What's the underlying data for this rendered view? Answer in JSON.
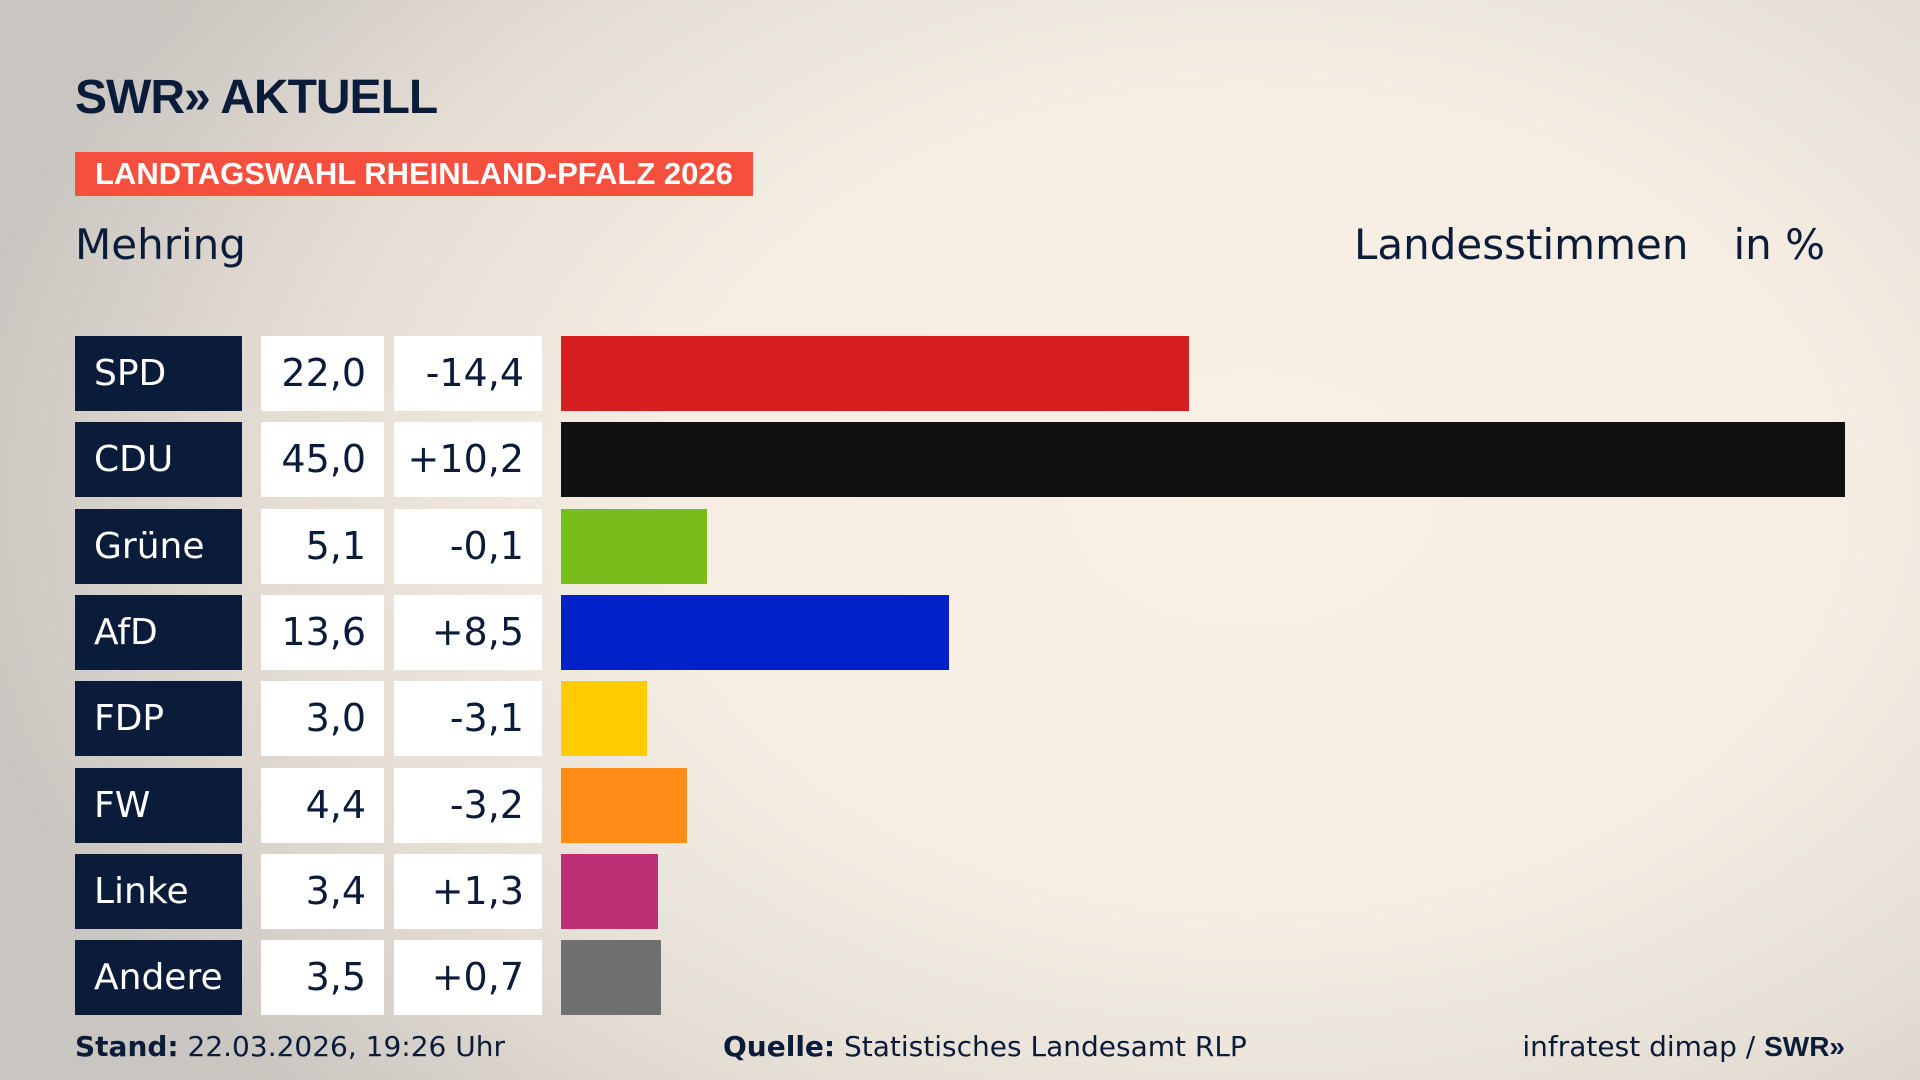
{
  "header": {
    "logo": "SWR» AKTUELL",
    "badge": "LANDTAGSWAHL RHEINLAND-PFALZ 2026",
    "place": "Mehring",
    "metric": "Landesstimmen",
    "unit": "in %"
  },
  "chart_data": {
    "type": "bar",
    "orientation": "horizontal",
    "categories": [
      "SPD",
      "CDU",
      "Grüne",
      "AfD",
      "FDP",
      "FW",
      "Linke",
      "Andere"
    ],
    "values": [
      22.0,
      45.0,
      5.1,
      13.6,
      3.0,
      4.4,
      3.4,
      3.5
    ],
    "value_labels": [
      "22,0",
      "45,0",
      "5,1",
      "13,6",
      "3,0",
      "4,4",
      "3,4",
      "3,5"
    ],
    "diff_labels": [
      "-14,4",
      "+10,2",
      "-0,1",
      "+8,5",
      "-3,1",
      "-3,2",
      "+1,3",
      "+0,7"
    ],
    "diffs": [
      -14.4,
      10.2,
      -0.1,
      8.5,
      -3.1,
      -3.2,
      1.3,
      0.7
    ],
    "colors": [
      "#d71f1f",
      "#111111",
      "#79bd1c",
      "#0021c7",
      "#ffcc00",
      "#ff8c17",
      "#bd3075",
      "#707070"
    ],
    "xlim": [
      0,
      45
    ],
    "grid": false
  },
  "footer": {
    "stand_label": "Stand:",
    "stand": "22.03.2026, 19:26 Uhr",
    "source_label": "Quelle:",
    "source": "Statistisches Landesamt RLP",
    "credit": "infratest dimap /",
    "credit_logo": "SWR»"
  }
}
